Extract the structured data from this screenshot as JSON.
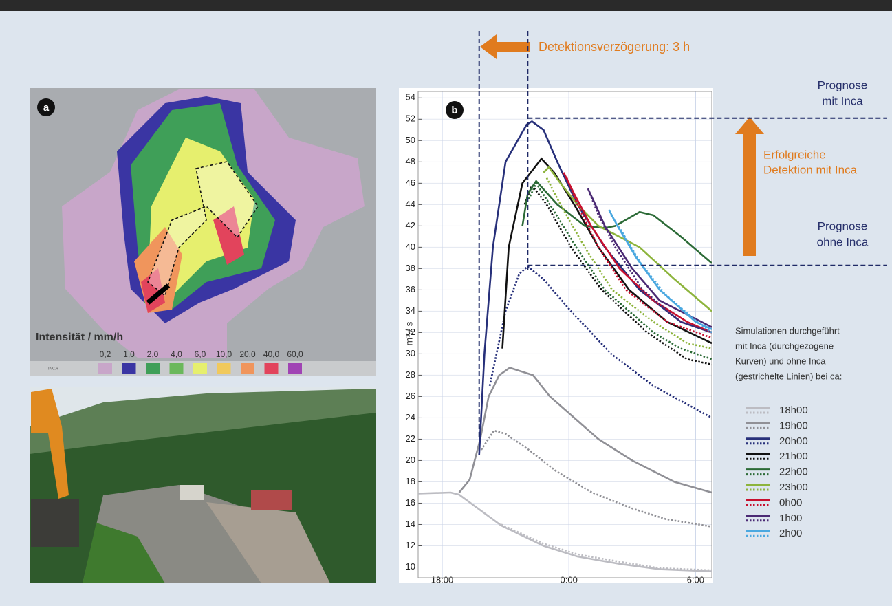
{
  "panel_a": {
    "label": "a",
    "legend_title": "Intensität / mm/h",
    "source": "INCA",
    "legend": [
      {
        "label": "0,2",
        "color": "#c8a6c9"
      },
      {
        "label": "1,0",
        "color": "#3a35a3"
      },
      {
        "label": "2,0",
        "color": "#3f9f58"
      },
      {
        "label": "4,0",
        "color": "#6bb85c"
      },
      {
        "label": "6,0",
        "color": "#e6ef6e"
      },
      {
        "label": "10,0",
        "color": "#f1c95c"
      },
      {
        "label": "20,0",
        "color": "#f0955c"
      },
      {
        "label": "40,0",
        "color": "#e2445c"
      },
      {
        "label": "60,0",
        "color": "#a044b4"
      }
    ]
  },
  "chart_data": {
    "type": "line",
    "label": "b",
    "y_label": "m³ / s",
    "xlim": [
      -1.14,
      12.77
    ],
    "xticks": [
      {
        "value": 0,
        "label": "18:00"
      },
      {
        "value": 6,
        "label": "0:00"
      },
      {
        "value": 12,
        "label": "6:00"
      }
    ],
    "ylim": [
      9,
      54.6
    ],
    "yticks": [
      10,
      12,
      14,
      16,
      18,
      20,
      22,
      24,
      26,
      28,
      30,
      32,
      34,
      36,
      38,
      40,
      42,
      44,
      46,
      48,
      50,
      52,
      54
    ],
    "grid": true,
    "series": [
      {
        "name": "18h00",
        "color": "#bcbcc2",
        "x": [
          -1.14,
          0.4,
          0.8,
          2.8,
          4.8,
          6.4,
          8.4,
          10.3,
          12.77
        ],
        "values": [
          16.9,
          17,
          16.8,
          13.9,
          12,
          11,
          10.3,
          9.8,
          9.6
        ],
        "x_ohne": [
          2.8,
          4.8,
          6.4,
          8.4,
          10.3,
          12.77
        ],
        "values_ohne": [
          14,
          12.2,
          11.2,
          10.5,
          9.9,
          9.7
        ]
      },
      {
        "name": "19h00",
        "color": "#909096",
        "x": [
          0.8,
          1.3,
          1.8,
          2.2,
          2.7,
          3.2,
          4.3,
          5.1,
          6.25,
          7.4,
          9,
          11,
          12.77
        ],
        "values": [
          17,
          18.2,
          22,
          26,
          28,
          28.7,
          28,
          26,
          24,
          22,
          20,
          18,
          17
        ],
        "x_ohne": [
          1.85,
          2.45,
          3,
          4.1,
          5.4,
          7.1,
          9,
          10.6,
          12.77
        ],
        "values_ohne": [
          21,
          22.8,
          22.5,
          21,
          19,
          17,
          15.5,
          14.5,
          13.8
        ]
      },
      {
        "name": "20h00",
        "color": "#27307a",
        "x": [
          1.75,
          2,
          2.4,
          3,
          4,
          4.25,
          4.8,
          5.45,
          6.4,
          7.7,
          9.35,
          11.3,
          12.77
        ],
        "values": [
          20.5,
          30,
          40,
          48,
          51.5,
          51.8,
          51,
          48,
          44,
          40,
          36,
          33,
          32
        ],
        "x_ohne": [
          2.25,
          3,
          3.65,
          4.05,
          4.8,
          6.1,
          8,
          10,
          12.77
        ],
        "values_ohne": [
          27,
          34,
          37.5,
          38.2,
          37,
          34,
          30,
          27,
          24
        ]
      },
      {
        "name": "21h00",
        "color": "#111111",
        "x": [
          2.85,
          3.15,
          3.8,
          4.7,
          5.3,
          6.25,
          7.4,
          8.85,
          10.65,
          12.77
        ],
        "values": [
          30.5,
          40,
          46,
          48.3,
          47,
          44,
          40,
          36,
          33,
          31
        ],
        "x_ohne": [
          3.9,
          4.25,
          4.95,
          6.1,
          7.55,
          9.7,
          11.6,
          12.77
        ],
        "values_ohne": [
          44,
          45.8,
          44,
          40,
          36,
          32,
          29.5,
          29
        ]
      },
      {
        "name": "22h00",
        "color": "#2b6a36",
        "x": [
          3.8,
          4.05,
          4.45,
          5.45,
          6.75,
          7.7,
          8.2,
          9.35,
          10,
          11.3,
          12.77
        ],
        "values": [
          42,
          45,
          46.2,
          44,
          42,
          41.8,
          42,
          43.3,
          43,
          41,
          38.5
        ],
        "x_ohne": [
          4.1,
          4.45,
          5.1,
          6.35,
          7.7,
          10,
          11.3,
          12.77
        ],
        "values_ohne": [
          44.5,
          46,
          44,
          40,
          36,
          32,
          30.5,
          29.5
        ]
      },
      {
        "name": "23h00",
        "color": "#8db43c",
        "x": [
          4.8,
          5.05,
          5.6,
          6.4,
          7.4,
          9.35,
          11,
          12.77
        ],
        "values": [
          47,
          47.5,
          46,
          44,
          42,
          40,
          37,
          34
        ],
        "x_ohne": [
          4.95,
          5.6,
          6.75,
          8.05,
          10,
          11.6,
          12.77
        ],
        "values_ohne": [
          46.5,
          44,
          40,
          36,
          33,
          31,
          30.5
        ]
      },
      {
        "name": "0h00",
        "color": "#c8102e",
        "x": [
          5.75,
          6.25,
          7.05,
          8.4,
          10,
          11.6,
          12.77
        ],
        "values": [
          47,
          45,
          42,
          38,
          35,
          33,
          32
        ],
        "x_ohne": [
          5.9,
          6.4,
          7.4,
          8.7,
          10.65,
          12.77
        ],
        "values_ohne": [
          46.5,
          44,
          40,
          36,
          33,
          31.5
        ]
      },
      {
        "name": "1h00",
        "color": "#4b2a74",
        "x": [
          6.9,
          7.25,
          7.7,
          9,
          10.3,
          12.77
        ],
        "values": [
          45.5,
          44,
          42,
          38,
          35,
          32.5
        ],
        "x_ohne": [
          7,
          7.4,
          8.2,
          9.5,
          11.3,
          12.77
        ],
        "values_ohne": [
          45,
          43,
          40,
          36,
          33,
          32
        ]
      },
      {
        "name": "2h00",
        "color": "#4aa8e0",
        "x": [
          7.9,
          8.3,
          9.2,
          10.3,
          12,
          12.77
        ],
        "values": [
          43.5,
          42,
          39,
          36,
          33,
          32.3
        ],
        "x_ohne": [
          8,
          8.5,
          9.4,
          10.6,
          12.2,
          12.77
        ],
        "values_ohne": [
          43,
          41.5,
          38.5,
          35.5,
          32.8,
          32
        ]
      }
    ],
    "reference_x": [
      1.75,
      4.05
    ],
    "reference_y": [
      52.1,
      38.3
    ],
    "annotations": {
      "delay": "Detektionsverzögerung: 3 h",
      "with_inca": [
        "Prognose",
        "mit Inca"
      ],
      "success": [
        "Erfolgreiche",
        "Detektion mit Inca"
      ],
      "without_inca": [
        "Prognose",
        "ohne Inca"
      ],
      "legend_title": [
        "Simulationen durchgeführt",
        "mit Inca (durchgezogene",
        "Kurven) und ohne Inca",
        "(gestrichelte Linien) bei ca:"
      ]
    }
  }
}
